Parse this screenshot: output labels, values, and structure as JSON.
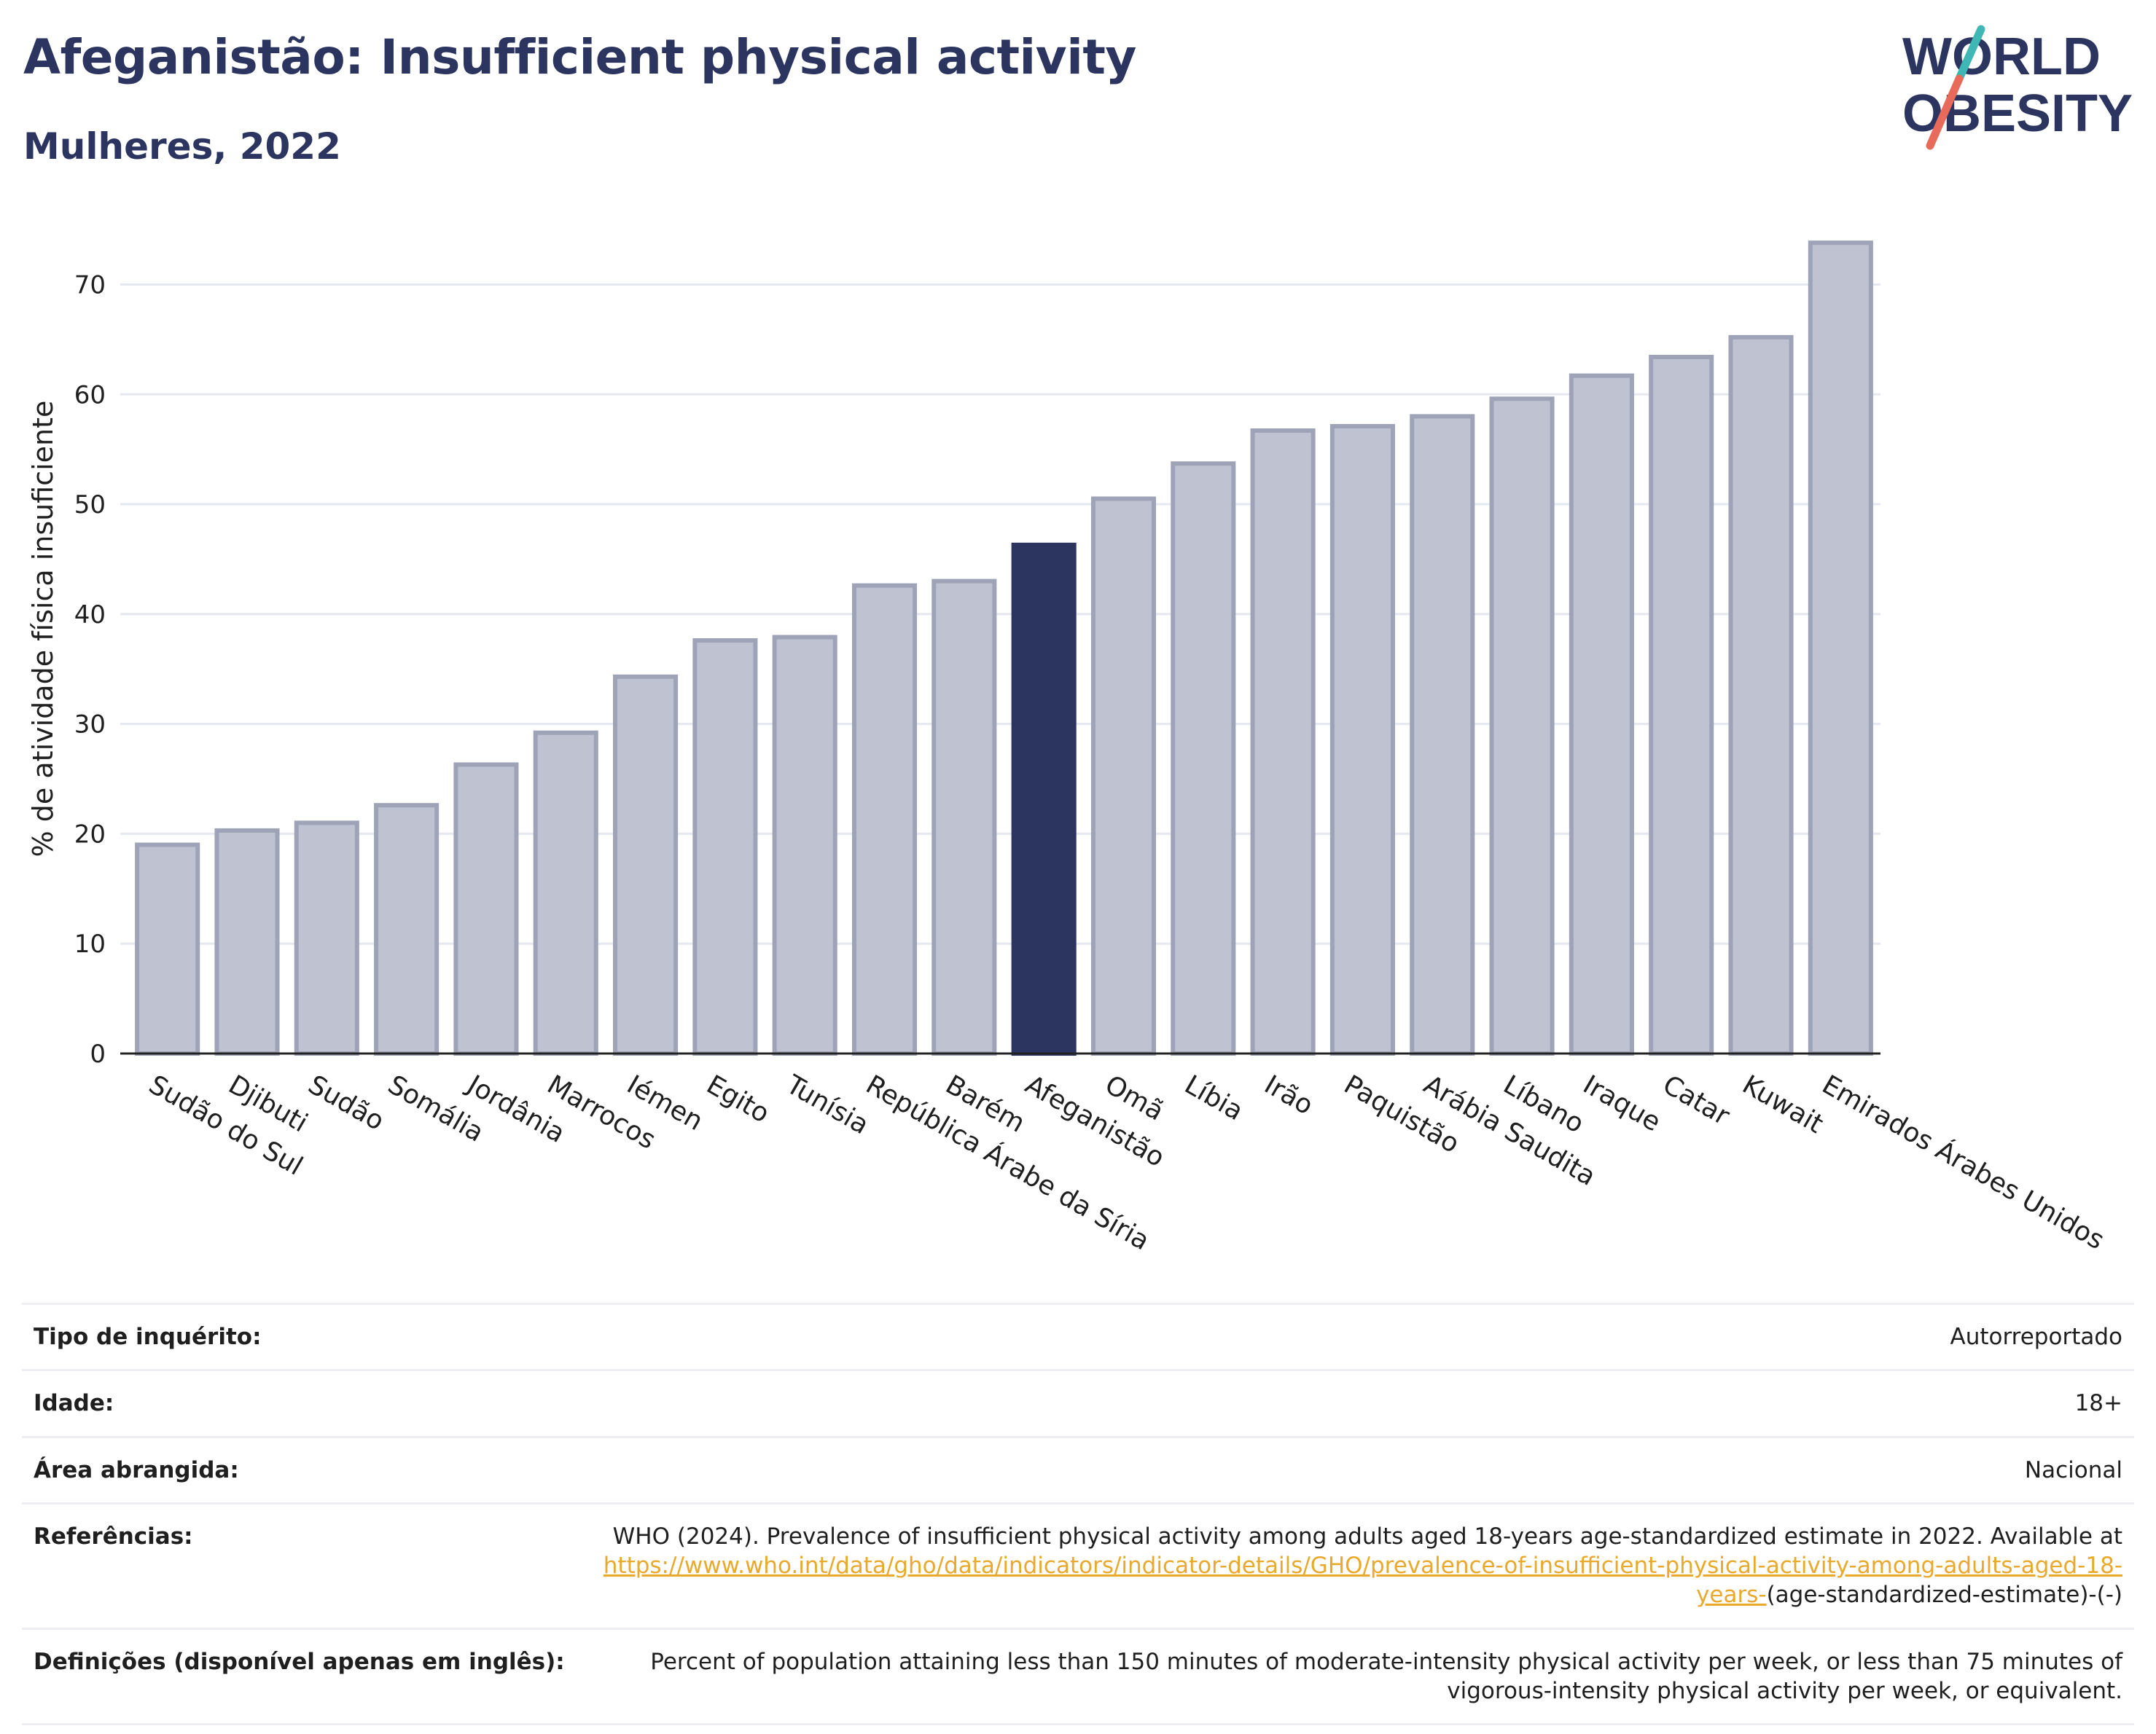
{
  "header": {
    "title": "Afeganistão: Insufficient physical activity",
    "subtitle": "Mulheres, 2022"
  },
  "logo": {
    "line1": "WORLD",
    "line2": "OBESITY",
    "slash_colors": [
      "#3fb7b5",
      "#e86a5a"
    ],
    "text_color": "#2b3560"
  },
  "colors": {
    "bar": "#bfc3d1",
    "bar_stroke": "#9ea3b8",
    "highlight": "#2b3560",
    "grid": "#e5e8ef"
  },
  "chart_data": {
    "type": "bar",
    "title": "Afeganistão: Insufficient physical activity",
    "subtitle": "Mulheres, 2022",
    "xlabel": "",
    "ylabel": "% de atividade física insuficiente",
    "ylim": [
      0,
      76
    ],
    "yticks": [
      0,
      10,
      20,
      30,
      40,
      50,
      60,
      70
    ],
    "grid": true,
    "highlight": "Afeganistão",
    "categories": [
      "Sudão do Sul",
      "Djibuti",
      "Sudão",
      "Somália",
      "Jordânia",
      "Marrocos",
      "Iémen",
      "Egito",
      "Tunísia",
      "República Árabe da Síria",
      "Barém",
      "Afeganistão",
      "Omã",
      "Líbia",
      "Irão",
      "Paquistão",
      "Arábia Saudita",
      "Líbano",
      "Iraque",
      "Catar",
      "Kuwait",
      "Emirados Árabes Unidos"
    ],
    "values": [
      19.0,
      20.3,
      21.0,
      22.6,
      26.3,
      29.2,
      34.3,
      37.6,
      37.9,
      42.6,
      43.0,
      46.3,
      50.5,
      53.7,
      56.7,
      57.1,
      58.0,
      59.6,
      61.7,
      63.4,
      65.2,
      73.8
    ]
  },
  "info": {
    "survey_type": {
      "label": "Tipo de inquérito:",
      "value": "Autorreportado"
    },
    "age": {
      "label": "Idade:",
      "value": "18+"
    },
    "area": {
      "label": "Área abrangida:",
      "value": "Nacional"
    },
    "references": {
      "label": "Referências:",
      "text_before": "WHO (2024). Prevalence of insufficient physical activity among adults aged 18-years age-standardized estimate in 2022. Available at",
      "link": "https://www.who.int/data/gho/data/indicators/indicator-details/GHO/prevalence-of-insufficient-physical-activity-among-adults-aged-18-years-",
      "text_after": "(age-standardized-estimate)-(-)"
    },
    "definitions": {
      "label": "Definições (disponível apenas em inglês):",
      "value": "Percent of population attaining less than 150 minutes of moderate-intensity physical activity per week, or less than 75 minutes of vigorous-intensity physical activity per week, or equivalent."
    }
  }
}
